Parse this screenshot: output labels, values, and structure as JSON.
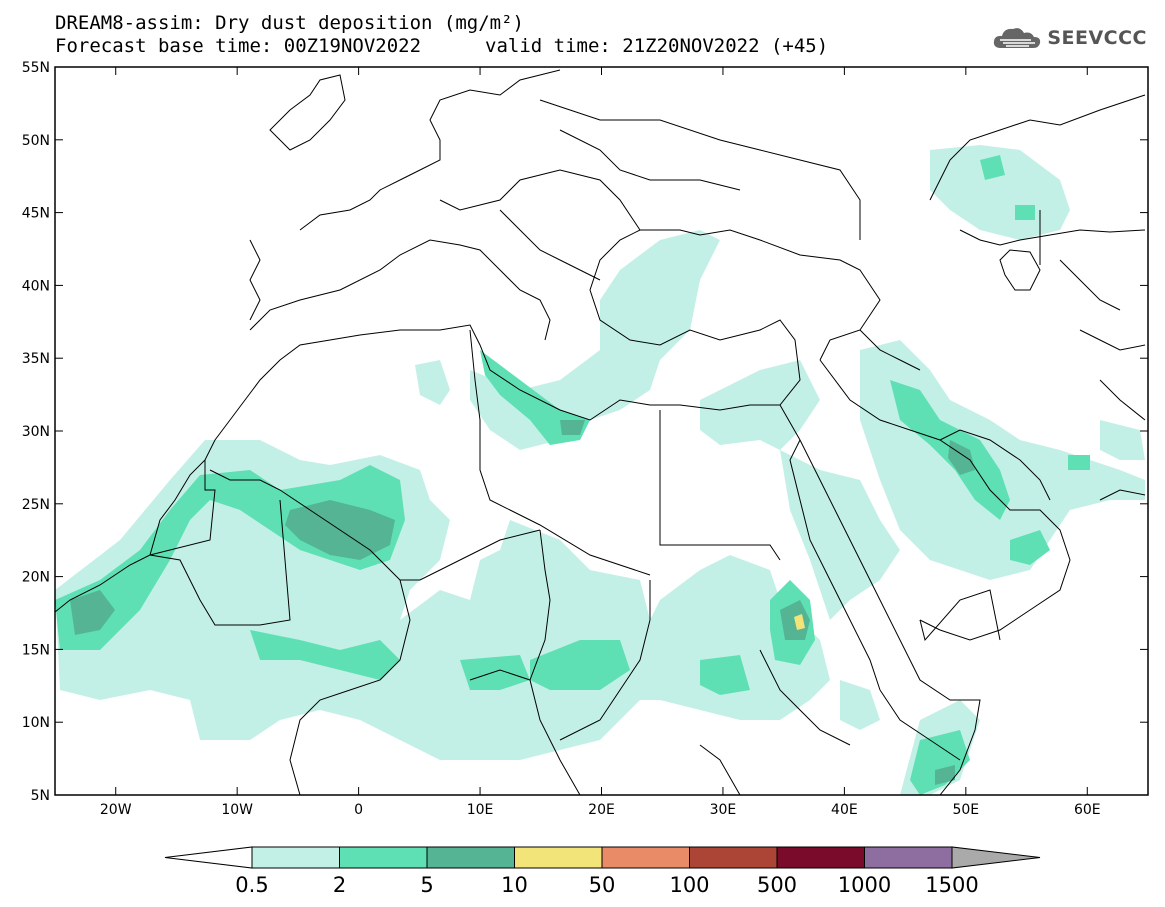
{
  "header": {
    "title_line1": "DREAM8-assim: Dry dust deposition (mg/m²)",
    "title_line2": "Forecast base time: 00Z19NOV2022",
    "valid_time": "valid time: 21Z20NOV2022 (+45)"
  },
  "logo": {
    "text": "SEEVCCC",
    "icon": "cloud-icon"
  },
  "axes": {
    "lat_labels": [
      "55N",
      "50N",
      "45N",
      "40N",
      "35N",
      "30N",
      "25N",
      "20N",
      "15N",
      "10N",
      "5N"
    ],
    "lon_labels": [
      "20W",
      "10W",
      "0",
      "10E",
      "20E",
      "30E",
      "40E",
      "50E",
      "60E"
    ]
  },
  "legend": {
    "labels": [
      "0.5",
      "2",
      "5",
      "10",
      "50",
      "100",
      "500",
      "1000",
      "1500"
    ],
    "colors": [
      "#c3f0e6",
      "#5ee0b4",
      "#55b494",
      "#f3e479",
      "#e98b66",
      "#ad4537",
      "#7a0b2b",
      "#8e6ea0",
      "#aaaaaa"
    ]
  }
}
